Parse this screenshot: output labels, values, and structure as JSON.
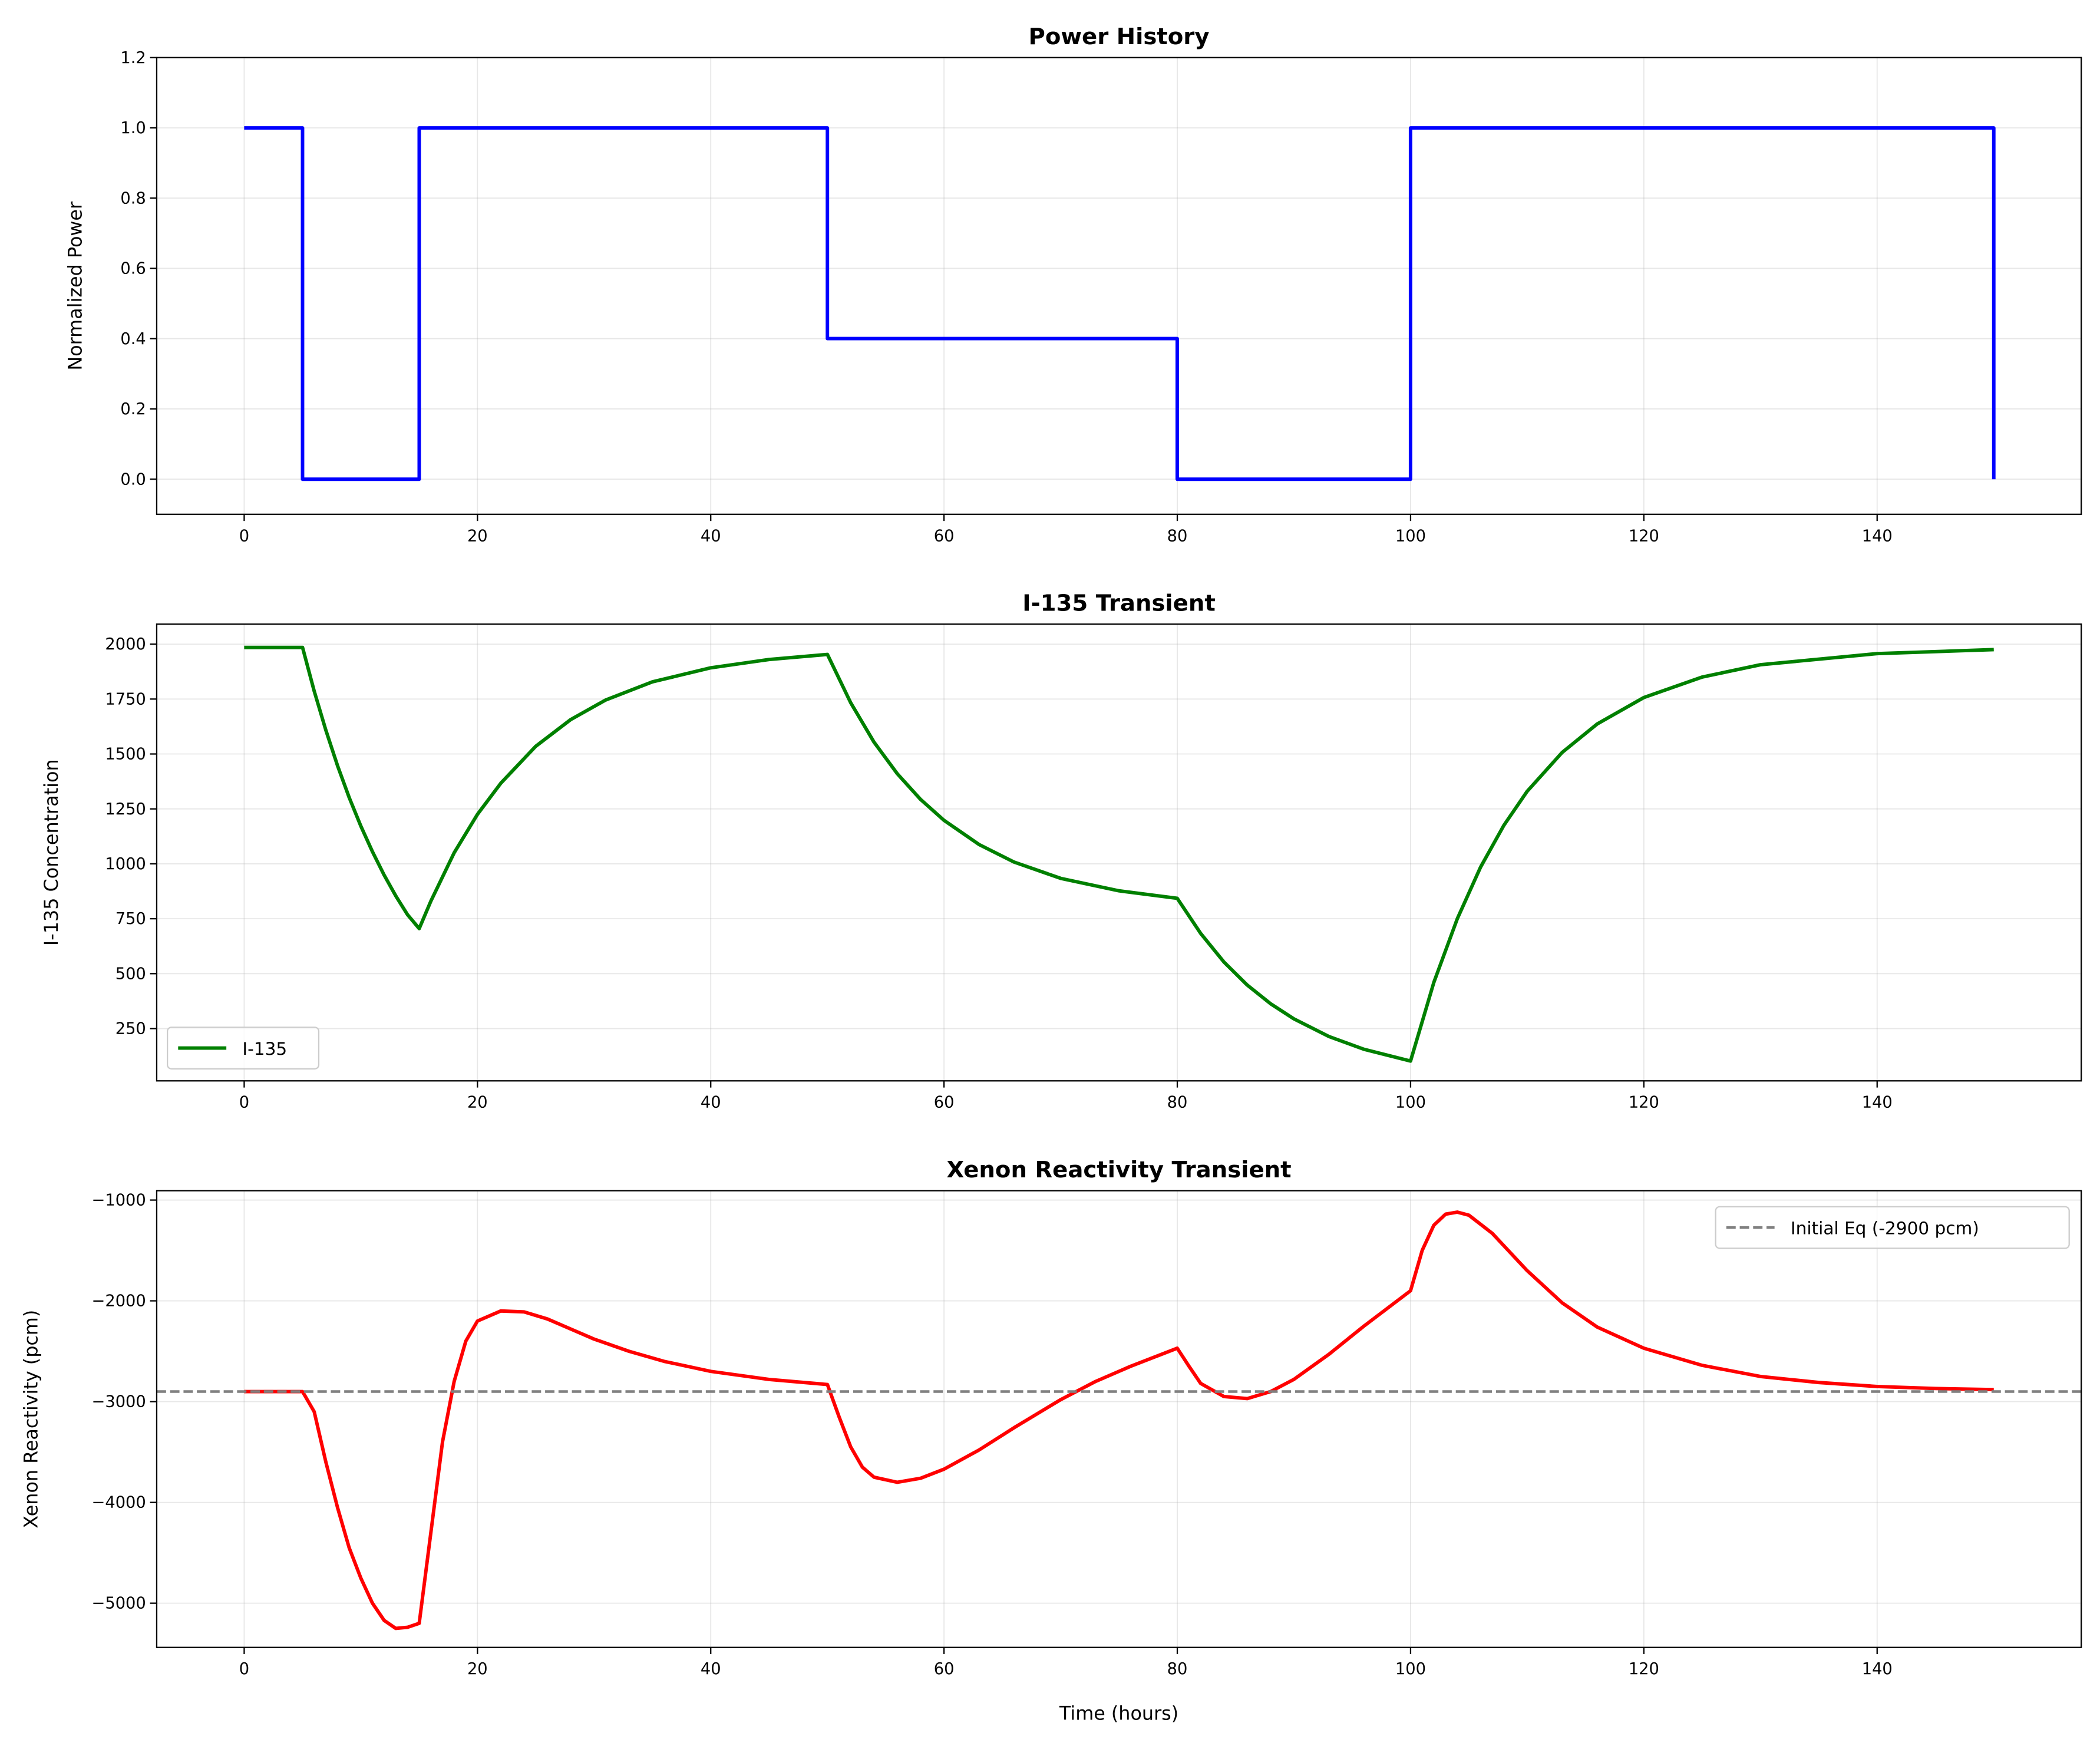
{
  "chart_data": [
    {
      "type": "line",
      "title": "Power History",
      "xlabel": "",
      "ylabel": "Normalized Power",
      "xlim": [
        -7.5,
        157.5
      ],
      "ylim": [
        -0.1,
        1.2
      ],
      "xticks": [
        0,
        20,
        40,
        60,
        80,
        100,
        120,
        140
      ],
      "yticks": [
        0.0,
        0.2,
        0.4,
        0.6,
        0.8,
        1.0,
        1.2
      ],
      "ytick_labels": [
        "0.0",
        "0.2",
        "0.4",
        "0.6",
        "0.8",
        "1.0",
        "1.2"
      ],
      "grid": true,
      "series": [
        {
          "color": "#0000ff",
          "style": "solid",
          "x": [
            0,
            5,
            5,
            15,
            15,
            50,
            50,
            80,
            80,
            100,
            100,
            150,
            150
          ],
          "y": [
            1,
            1,
            0,
            0,
            1,
            1,
            0.4,
            0.4,
            0,
            0,
            1,
            1,
            0
          ]
        }
      ]
    },
    {
      "type": "line",
      "title": "I-135 Transient",
      "xlabel": "",
      "ylabel": "I-135 Concentration",
      "xlim": [
        -7.5,
        157.5
      ],
      "ylim": [
        12,
        2091
      ],
      "xticks": [
        0,
        20,
        40,
        60,
        80,
        100,
        120,
        140
      ],
      "yticks": [
        250,
        500,
        750,
        1000,
        1250,
        1500,
        1750,
        2000
      ],
      "ytick_labels": [
        "250",
        "500",
        "750",
        "1000",
        "1250",
        "1500",
        "1750",
        "2000"
      ],
      "grid": true,
      "legend": "lower-left",
      "series": [
        {
          "name": "I-135",
          "color": "#008000",
          "style": "solid",
          "x": [
            0,
            5,
            6,
            7,
            8,
            9,
            10,
            11,
            12,
            13,
            14,
            15,
            16,
            18,
            20,
            22,
            25,
            28,
            31,
            35,
            40,
            45,
            50,
            52,
            54,
            56,
            58,
            60,
            63,
            66,
            70,
            75,
            80,
            82,
            84,
            86,
            88,
            90,
            93,
            96,
            100,
            102,
            104,
            106,
            108,
            110,
            113,
            116,
            120,
            125,
            130,
            140,
            150
          ],
          "y": [
            1985,
            1985,
            1786,
            1608,
            1447,
            1302,
            1172,
            1055,
            949,
            854,
            769,
            705,
            830,
            1050,
            1225,
            1367,
            1535,
            1657,
            1746,
            1828,
            1892,
            1930,
            1953,
            1733,
            1554,
            1410,
            1293,
            1198,
            1088,
            1008,
            934,
            877,
            843,
            683,
            553,
            448,
            363,
            294,
            214,
            156,
            102,
            460,
            750,
            985,
            1175,
            1330,
            1507,
            1637,
            1757,
            1850,
            1906,
            1957,
            1975
          ]
        }
      ]
    },
    {
      "type": "line",
      "title": "Xenon Reactivity Transient",
      "xlabel": "Time (hours)",
      "ylabel": "Xenon Reactivity (pcm)",
      "xlim": [
        -7.5,
        157.5
      ],
      "ylim": [
        -5439,
        -907
      ],
      "xticks": [
        0,
        20,
        40,
        60,
        80,
        100,
        120,
        140
      ],
      "yticks": [
        -5000,
        -4000,
        -3000,
        -2000,
        -1000
      ],
      "ytick_labels": [
        "−5000",
        "−4000",
        "−3000",
        "−2000",
        "−1000"
      ],
      "grid": true,
      "legend": "upper-right",
      "series": [
        {
          "color": "#ff0000",
          "style": "solid",
          "x": [
            0,
            5,
            6,
            7,
            8,
            9,
            10,
            11,
            12,
            13,
            14,
            15,
            16,
            17,
            18,
            19,
            20,
            22,
            24,
            26,
            28,
            30,
            33,
            36,
            40,
            45,
            50,
            51,
            52,
            53,
            54,
            56,
            58,
            60,
            63,
            66,
            70,
            73,
            76,
            80,
            81,
            82,
            84,
            86,
            88,
            90,
            93,
            96,
            100,
            101,
            102,
            103,
            104,
            105,
            107,
            110,
            113,
            116,
            120,
            125,
            130,
            135,
            140,
            145,
            150
          ],
          "y": [
            -2900,
            -2900,
            -3100,
            -3600,
            -4050,
            -4450,
            -4750,
            -5000,
            -5170,
            -5250,
            -5240,
            -5200,
            -4300,
            -3400,
            -2800,
            -2400,
            -2200,
            -2100,
            -2110,
            -2180,
            -2280,
            -2380,
            -2500,
            -2600,
            -2700,
            -2780,
            -2830,
            -3150,
            -3450,
            -3650,
            -3750,
            -3800,
            -3760,
            -3670,
            -3480,
            -3260,
            -2980,
            -2800,
            -2650,
            -2470,
            -2650,
            -2820,
            -2950,
            -2970,
            -2900,
            -2780,
            -2530,
            -2250,
            -1900,
            -1500,
            -1250,
            -1140,
            -1120,
            -1150,
            -1330,
            -1700,
            -2020,
            -2260,
            -2470,
            -2640,
            -2750,
            -2810,
            -2850,
            -2870,
            -2880
          ]
        },
        {
          "name": "Initial Eq (-2900 pcm)",
          "color": "#808080",
          "style": "dashed",
          "hline": -2900
        }
      ]
    }
  ]
}
